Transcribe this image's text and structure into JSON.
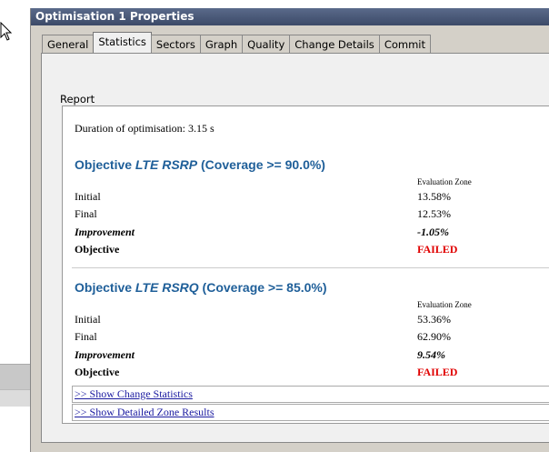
{
  "window": {
    "title": "Optimisation 1 Properties"
  },
  "tabs": [
    "General",
    "Statistics",
    "Sectors",
    "Graph",
    "Quality",
    "Change Details",
    "Commit"
  ],
  "active_tab": 1,
  "report": {
    "label": "Report",
    "duration": "Duration of optimisation: 3.15 s",
    "objectives": [
      {
        "heading": [
          "Objective ",
          "LTE RSRP",
          " (Coverage >= 90.0%)"
        ],
        "zone_header": "Evaluation Zone",
        "rows": [
          [
            "Initial",
            "13.58%"
          ],
          [
            "Final",
            "12.53%"
          ],
          [
            "Improvement",
            "-1.05%"
          ],
          [
            "Objective",
            "FAILED"
          ]
        ]
      },
      {
        "heading": [
          "Objective ",
          "LTE RSRQ",
          " (Coverage >= 85.0%)"
        ],
        "zone_header": "Evaluation Zone",
        "rows": [
          [
            "Initial",
            "53.36%"
          ],
          [
            "Final",
            "62.90%"
          ],
          [
            "Improvement",
            "9.54%"
          ],
          [
            "Objective",
            "FAILED"
          ]
        ]
      }
    ],
    "links": [
      ">> Show Change Statistics",
      ">> Show Detailed Zone Results"
    ]
  }
}
